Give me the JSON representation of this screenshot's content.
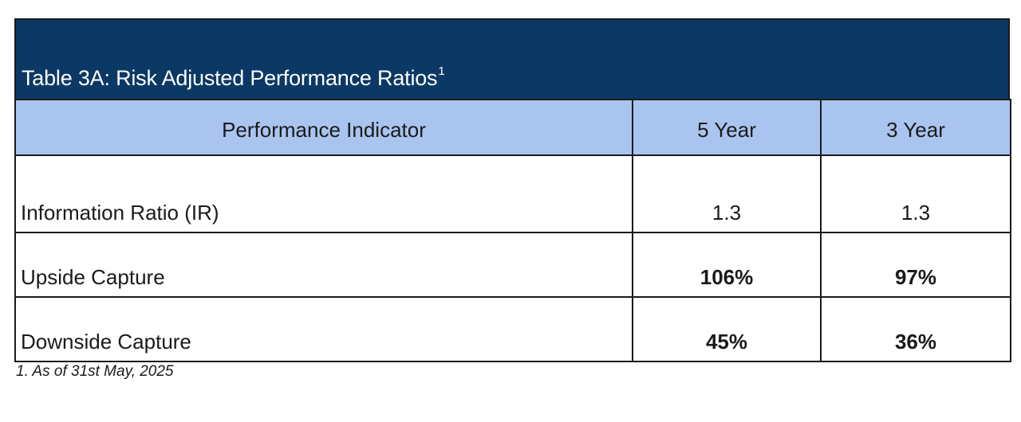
{
  "table": {
    "title": "Table 3A: Risk Adjusted Performance Ratios",
    "title_superscript": "1",
    "headers": [
      "Performance Indicator",
      "5 Year",
      "3 Year"
    ],
    "rows": [
      {
        "label": "Information Ratio (IR)",
        "five_year": "1.3",
        "three_year": "1.3",
        "bold_values": false
      },
      {
        "label": "Upside Capture",
        "five_year": "106%",
        "three_year": "97%",
        "bold_values": true
      },
      {
        "label": "Downside Capture",
        "five_year": "45%",
        "three_year": "36%",
        "bold_values": true
      }
    ]
  },
  "footnote": "1. As of 31st May, 2025",
  "colors": {
    "title_background": "#0c3865",
    "header_background": "#a9c4ef",
    "title_text": "#ffffff"
  }
}
